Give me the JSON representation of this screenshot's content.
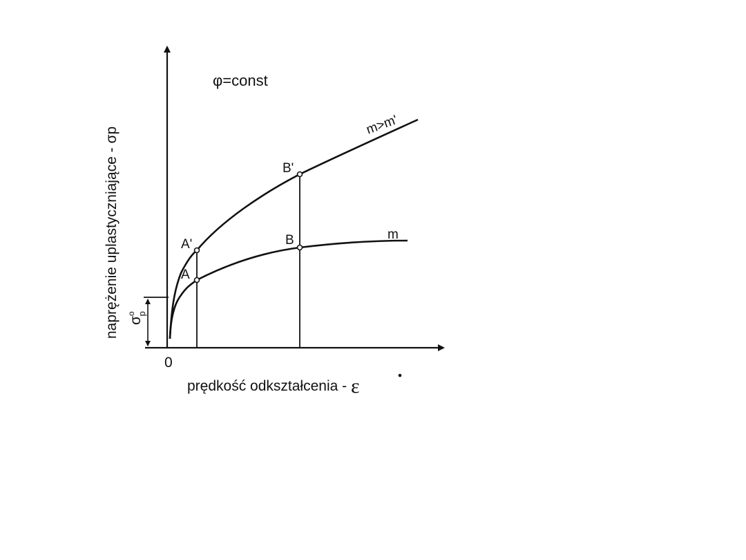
{
  "diagram": {
    "condition_label": "φ=const",
    "y_axis_label": "naprężenie uplastyczniające - σp",
    "x_axis_label": "prędkość odkształcenia - ",
    "x_axis_symbol": "ε",
    "origin_label": "0",
    "sigma_label_main": "σ",
    "sigma_label_sup": "o",
    "sigma_label_sub": "p",
    "curves": [
      {
        "label": "m>m'",
        "points": [
          "A'",
          "B'"
        ]
      },
      {
        "label": "m",
        "points": [
          "A",
          "B"
        ]
      }
    ],
    "points": {
      "A_prime": "A'",
      "B_prime": "B'",
      "A": "A",
      "B": "B"
    }
  }
}
